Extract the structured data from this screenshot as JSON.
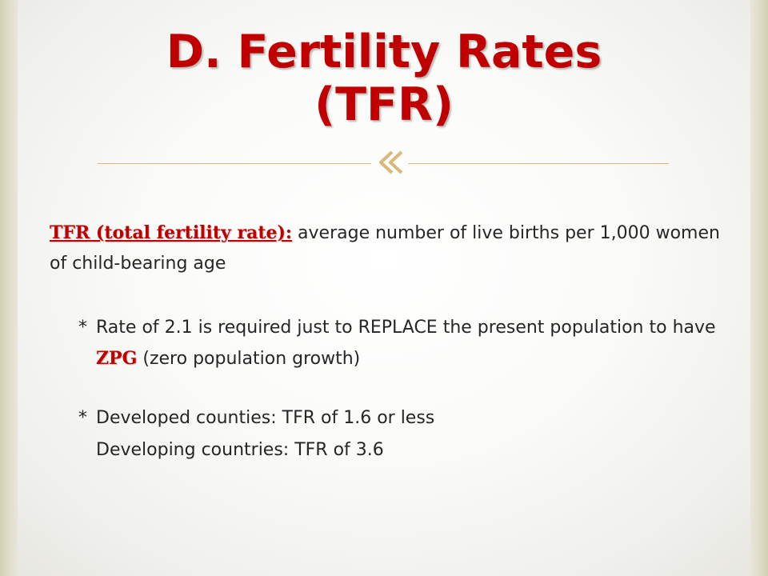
{
  "slide": {
    "title_line1": "D.  Fertility Rates",
    "title_line2": "(TFR)",
    "ornament_icon": "double-chevron-ornament-icon",
    "accent_color": "#c00000",
    "rule_color": "#d9b879"
  },
  "definition": {
    "term": "TFR (total fertility rate):",
    "text": " average number of live births per 1,000 women of child-bearing age"
  },
  "bullets": [
    {
      "marker": "*",
      "text_before": "Rate of 2.1 is required just to REPLACE the present population to have ",
      "highlight": "ZPG",
      "text_after": " (zero population growth)"
    },
    {
      "marker": "*",
      "text": "Developed counties: TFR of 1.6 or less",
      "continuation": "Developing countries: TFR of 3.6"
    }
  ]
}
